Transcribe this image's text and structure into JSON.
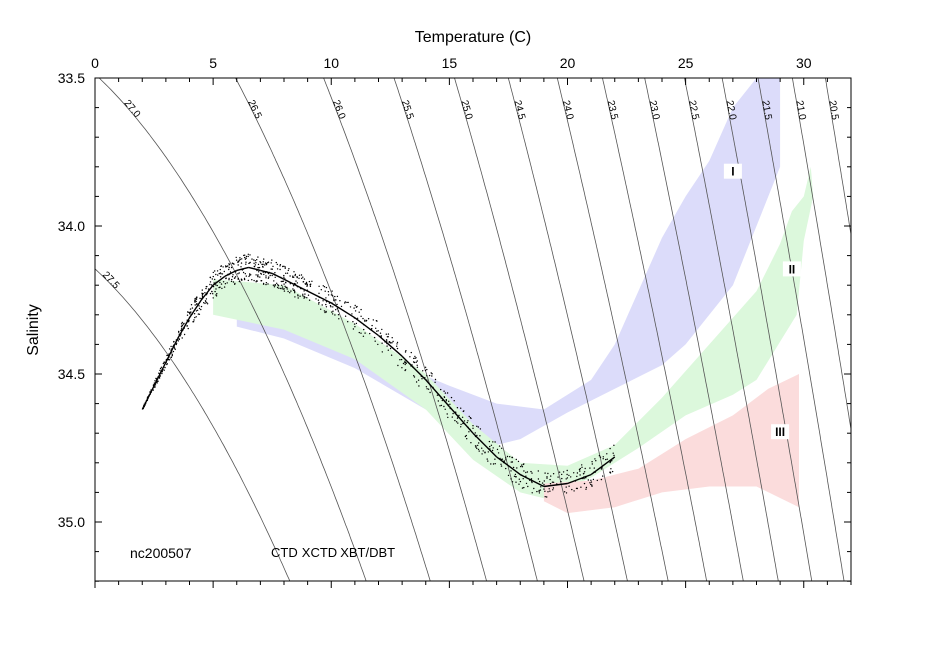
{
  "chart_data": {
    "type": "scatter",
    "title": "",
    "xlabel": "Temperature (C)",
    "ylabel": "Salinity",
    "xlim": [
      0,
      32
    ],
    "ylim": [
      35.2,
      33.5
    ],
    "y_axis_inverted": true,
    "x_axis_position": "top",
    "x_ticks": [
      "0",
      "5",
      "10",
      "15",
      "20",
      "25",
      "30"
    ],
    "y_ticks": [
      "33.5",
      "34.0",
      "34.5",
      "35.0"
    ],
    "grid": false,
    "cruise_label": "nc200507",
    "legend": [
      {
        "name": "CTD",
        "color": "#000000"
      },
      {
        "name": "XCTD",
        "color": "#00dd00"
      },
      {
        "name": "XBT/DBT",
        "color": "#dd0000"
      }
    ],
    "legend_placement": "bottom-left",
    "isopycnals": [
      "27.5",
      "27.0",
      "26.5",
      "26.0",
      "25.5",
      "25.0",
      "24.5",
      "24.0",
      "23.5",
      "23.0",
      "22.5",
      "22.0",
      "21.5",
      "21.0",
      "20.5"
    ],
    "regions": [
      {
        "name": "I",
        "color": "#dcdcfa",
        "upper": [
          [
            6,
            34.27
          ],
          [
            9,
            34.34
          ],
          [
            12,
            34.44
          ],
          [
            15,
            34.54
          ],
          [
            17,
            34.6
          ],
          [
            19,
            34.62
          ],
          [
            21,
            34.52
          ],
          [
            22,
            34.4
          ],
          [
            23,
            34.22
          ],
          [
            24,
            34.04
          ],
          [
            25,
            33.9
          ],
          [
            26,
            33.78
          ],
          [
            27,
            33.6
          ],
          [
            28,
            33.5
          ]
        ],
        "lower": [
          [
            29,
            33.5
          ],
          [
            29,
            33.8
          ],
          [
            28,
            34.0
          ],
          [
            27,
            34.2
          ],
          [
            26,
            34.3
          ],
          [
            25,
            34.4
          ],
          [
            24,
            34.47
          ],
          [
            22,
            34.55
          ],
          [
            20,
            34.63
          ],
          [
            18,
            34.72
          ],
          [
            17,
            34.74
          ],
          [
            16,
            34.71
          ],
          [
            14,
            34.62
          ],
          [
            11,
            34.48
          ],
          [
            8,
            34.38
          ],
          [
            6,
            34.34
          ]
        ]
      },
      {
        "name": "II",
        "color": "#dcf8dc",
        "upper": [
          [
            5,
            34.18
          ],
          [
            8,
            34.2
          ],
          [
            11,
            34.33
          ],
          [
            14,
            34.5
          ],
          [
            16,
            34.67
          ],
          [
            18,
            34.8
          ],
          [
            20,
            34.81
          ],
          [
            22,
            34.74
          ],
          [
            24,
            34.58
          ],
          [
            26,
            34.4
          ],
          [
            28,
            34.22
          ],
          [
            29,
            34.06
          ],
          [
            29.5,
            33.95
          ],
          [
            30,
            33.9
          ],
          [
            30.3,
            33.8
          ]
        ],
        "lower": [
          [
            30.4,
            33.9
          ],
          [
            30,
            34.05
          ],
          [
            29.7,
            34.3
          ],
          [
            28,
            34.52
          ],
          [
            27,
            34.57
          ],
          [
            25,
            34.64
          ],
          [
            23,
            34.75
          ],
          [
            21,
            34.85
          ],
          [
            19,
            34.92
          ],
          [
            18,
            34.9
          ],
          [
            16,
            34.79
          ],
          [
            14,
            34.62
          ],
          [
            11,
            34.45
          ],
          [
            8,
            34.35
          ],
          [
            5,
            34.3
          ]
        ]
      },
      {
        "name": "III",
        "color": "#fbdcdc",
        "upper": [
          [
            19,
            34.87
          ],
          [
            21,
            34.86
          ],
          [
            23,
            34.82
          ],
          [
            25,
            34.72
          ],
          [
            27,
            34.64
          ],
          [
            28.5,
            34.55
          ],
          [
            29.8,
            34.5
          ]
        ],
        "lower": [
          [
            29.8,
            34.95
          ],
          [
            28,
            34.88
          ],
          [
            26,
            34.88
          ],
          [
            24,
            34.9
          ],
          [
            22,
            34.95
          ],
          [
            20,
            34.97
          ],
          [
            19,
            34.93
          ]
        ]
      }
    ],
    "region_label_positions": [
      {
        "name": "I",
        "x": 27,
        "y": 33.82
      },
      {
        "name": "II",
        "x": 29.5,
        "y": 34.15
      },
      {
        "name": "III",
        "x": 29.0,
        "y": 34.7
      }
    ],
    "series": [
      {
        "name": "CTD",
        "color": "#000000",
        "x": [
          2.0,
          2.5,
          3.0,
          3.5,
          4.0,
          4.5,
          5.0,
          5.5,
          6.0,
          6.5,
          7.0,
          7.5,
          8.0,
          8.5,
          9.0,
          10.0,
          11.0,
          12.0,
          13.0,
          14.0,
          15.0,
          16.0,
          17.0,
          18.0,
          19.0,
          20.0,
          21.0,
          22.0
        ],
        "y": [
          34.62,
          34.54,
          34.46,
          34.38,
          34.31,
          34.25,
          34.2,
          34.17,
          34.15,
          34.14,
          34.15,
          34.16,
          34.18,
          34.2,
          34.22,
          34.26,
          34.31,
          34.37,
          34.44,
          34.52,
          34.61,
          34.7,
          34.78,
          34.84,
          34.88,
          34.87,
          34.84,
          34.78
        ]
      }
    ]
  }
}
